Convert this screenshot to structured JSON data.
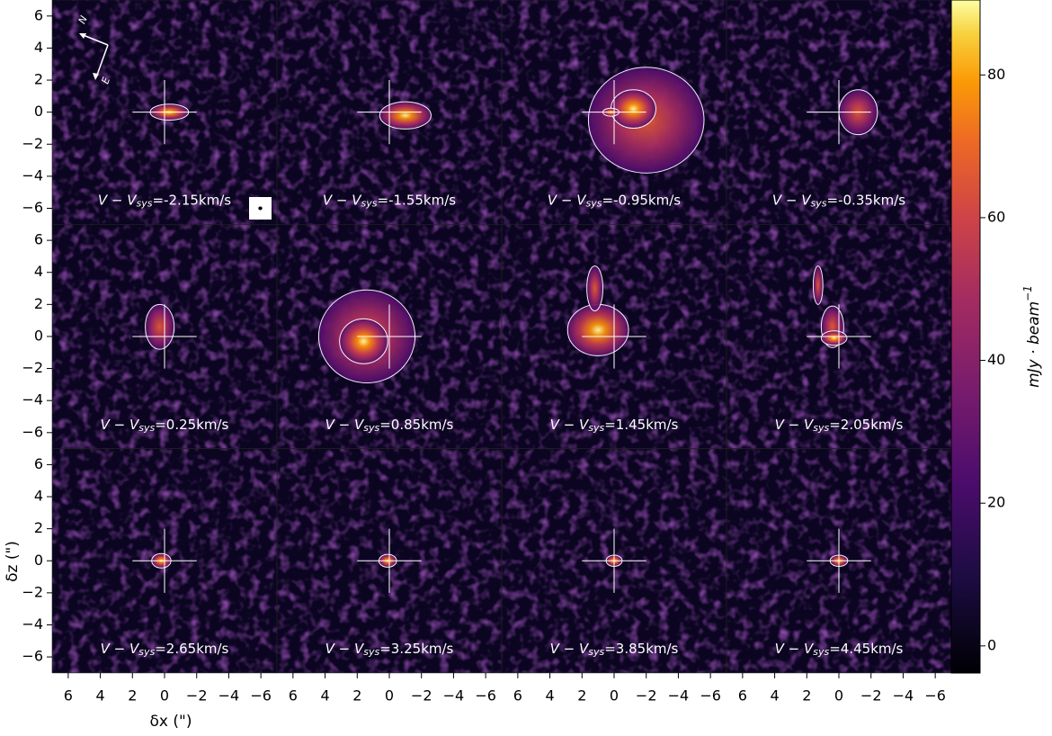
{
  "chart_data": {
    "type": "channel-map",
    "xlabel": "δx (\")",
    "ylabel": "δz (\")",
    "xlim": [
      7,
      -7
    ],
    "ylim": [
      -7,
      7
    ],
    "xticks": [
      6,
      4,
      2,
      0,
      {
        "value": -2,
        "label": "−2"
      },
      {
        "value": -4,
        "label": "−4"
      },
      {
        "value": -6,
        "label": "−6"
      }
    ],
    "yticks": [
      6,
      4,
      2,
      0,
      {
        "value": -2,
        "label": "−2"
      },
      {
        "value": -4,
        "label": "−4"
      },
      {
        "value": -6,
        "label": "−6"
      }
    ],
    "colorbar": {
      "label": "mJy · beam",
      "label_sup": "−1",
      "lim": [
        -3.8,
        90.5
      ],
      "ticks": [
        0,
        20,
        40,
        60,
        80
      ],
      "colormap": "inferno"
    },
    "panel_label": {
      "prefix": "V − V",
      "sub": "sys"
    },
    "panels": [
      "=-2.15km/s",
      "=-1.55km/s",
      "=-0.95km/s",
      "=-0.35km/s",
      "=0.25km/s",
      "=0.85km/s",
      "=1.45km/s",
      "=2.05km/s",
      "=2.65km/s",
      "=3.25km/s",
      "=3.85km/s",
      "=4.45km/s"
    ],
    "compass": {
      "north": "N",
      "east": "E"
    }
  }
}
